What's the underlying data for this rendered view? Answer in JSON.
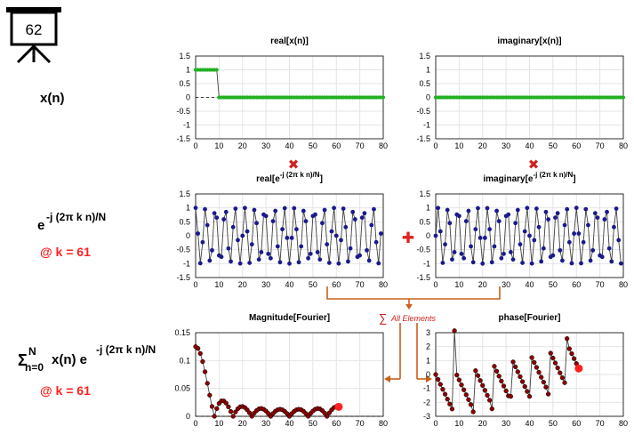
{
  "badge": {
    "number": "62"
  },
  "left_labels": {
    "xn": "x(n)",
    "exp_base": "e",
    "exp_sup": "-j (2π k n)/N",
    "k_label": "@ k = 61",
    "sum_sigma": "Σ",
    "sum_upper": "N",
    "sum_lower": "n=0",
    "sum_body": "x(n) e",
    "sum_sup": "-j (2π k n)/N",
    "k_label2": "@ k = 61"
  },
  "operators": {
    "multiply": "✖",
    "plus": "✚",
    "sum_symbol": "∑",
    "sum_text": "All Elements"
  },
  "colors": {
    "green": "#22b022",
    "navy": "#1a1a8c",
    "darkred": "#8b0000",
    "red": "#ff2020",
    "orange": "#c8601a",
    "line": "#404040",
    "grid": "#e4e4e4"
  },
  "chart_data": [
    {
      "id": "real-xn",
      "type": "line",
      "title": "real[x(n)]",
      "xlim": [
        0,
        80
      ],
      "ylim": [
        -1.5,
        1.5
      ],
      "xticks": [
        "0",
        "10",
        "20",
        "30",
        "40",
        "50",
        "60",
        "70",
        "80"
      ],
      "yticks": [
        "1.5",
        "1",
        "0.5",
        "0",
        "-0.5",
        "-1",
        "-1.5"
      ],
      "series": [
        {
          "marker_color": "green",
          "formula": "rect",
          "n": [
            0,
            80
          ],
          "width": 10
        }
      ]
    },
    {
      "id": "imag-xn",
      "type": "line",
      "title": "imaginary[x(n)]",
      "xlim": [
        0,
        80
      ],
      "ylim": [
        -1.5,
        1.5
      ],
      "xticks": [
        "0",
        "10",
        "20",
        "30",
        "40",
        "50",
        "60",
        "70",
        "80"
      ],
      "yticks": [
        "1.5",
        "1",
        "0.5",
        "0",
        "-0.5",
        "-1",
        "-1.5"
      ],
      "series": [
        {
          "marker_color": "green",
          "formula": "zero",
          "n": [
            0,
            80
          ]
        }
      ]
    },
    {
      "id": "real-exp",
      "type": "line",
      "title": "real[e-j (2π k n)/N]",
      "title_base": "real[e",
      "title_sup": "-j (2π k n)/N",
      "title_end": "]",
      "xlim": [
        0,
        80
      ],
      "ylim": [
        -1.5,
        1.5
      ],
      "xticks": [
        "0",
        "10",
        "20",
        "30",
        "40",
        "50",
        "60",
        "70",
        "80"
      ],
      "yticks": [
        "1.5",
        "1",
        "0.5",
        "0",
        "-0.5",
        "-1",
        "-1.5"
      ],
      "series": [
        {
          "marker_color": "navy",
          "formula": "cos",
          "k": 61,
          "N": 80,
          "n": [
            0,
            79
          ]
        }
      ]
    },
    {
      "id": "imag-exp",
      "type": "line",
      "title": "imaginary[e-j (2π k n)/N]",
      "title_base": "imaginary[e",
      "title_sup": "-j (2π k n)/N",
      "title_end": "]",
      "xlim": [
        0,
        80
      ],
      "ylim": [
        -1.5,
        1.5
      ],
      "xticks": [
        "0",
        "10",
        "20",
        "30",
        "40",
        "50",
        "60",
        "70",
        "80"
      ],
      "yticks": [
        "1.5",
        "1",
        "0.5",
        "0",
        "-0.5",
        "-1",
        "-1.5"
      ],
      "series": [
        {
          "marker_color": "navy",
          "formula": "negsin",
          "k": 61,
          "N": 80,
          "n": [
            0,
            79
          ]
        }
      ]
    },
    {
      "id": "magnitude",
      "type": "line",
      "title": "Magnitude[Fourier]",
      "xlim": [
        0,
        80
      ],
      "ylim": [
        0,
        0.15
      ],
      "xticks": [
        "0",
        "10",
        "20",
        "30",
        "40",
        "50",
        "60",
        "70",
        "80"
      ],
      "yticks": [
        "0.15",
        "0.1",
        "0.05",
        "0"
      ],
      "series": [
        {
          "marker_color": "darkred",
          "formula": "dft_mag",
          "N": 80,
          "width": 10,
          "k": [
            0,
            61
          ],
          "highlight_k": 61
        }
      ]
    },
    {
      "id": "phase",
      "type": "line",
      "title": "phase[Fourier]",
      "xlim": [
        0,
        80
      ],
      "ylim": [
        -3,
        3
      ],
      "xticks": [
        "0",
        "10",
        "20",
        "30",
        "40",
        "50",
        "60",
        "70",
        "80"
      ],
      "yticks": [
        "3",
        "2",
        "1",
        "0",
        "-1",
        "-2",
        "-3"
      ],
      "series": [
        {
          "marker_color": "darkred",
          "formula": "dft_phase",
          "N": 80,
          "width": 10,
          "k": [
            0,
            61
          ],
          "highlight_k": 61
        }
      ]
    }
  ]
}
